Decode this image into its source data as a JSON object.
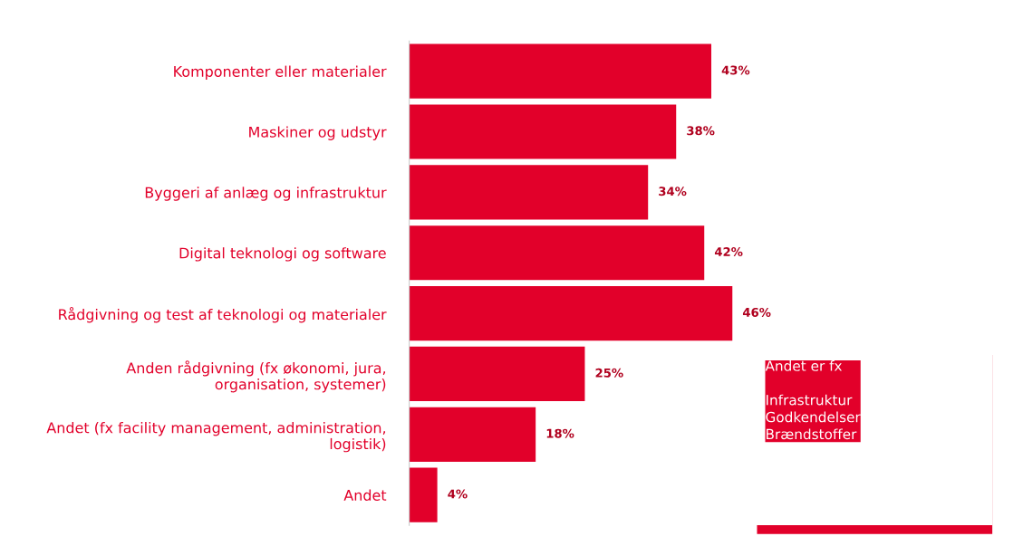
{
  "chart_data": {
    "type": "bar",
    "orientation": "horizontal",
    "categories": [
      "Komponenter eller materialer",
      "Maskiner og udstyr",
      "Byggeri af anlæg og infrastruktur",
      "Digital teknologi og software",
      "Rådgivning og test af teknologi og materialer",
      "Anden rådgivning (fx økonomi, jura,\norganisation, systemer)",
      "Andet (fx facility management, administration,\nlogistik)",
      "Andet"
    ],
    "values": [
      43,
      38,
      34,
      42,
      46,
      25,
      18,
      4
    ],
    "value_labels": [
      "43%",
      "38%",
      "34%",
      "42%",
      "46%",
      "25%",
      "18%",
      "4%"
    ],
    "color": "#e2002a",
    "xlim": [
      0,
      83
    ],
    "tick_labels": "y",
    "grid": false,
    "legend": false,
    "annotations": [
      "Andet er fx\n\nInfrastruktur\nGodkendelser\nBrændstoffer"
    ]
  }
}
